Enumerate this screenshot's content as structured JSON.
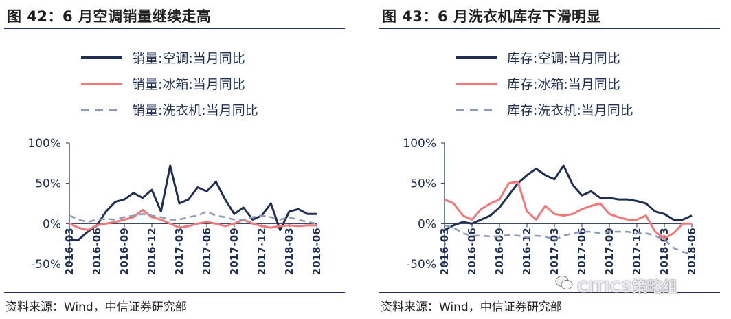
{
  "watermark": {
    "text": "CITICS策略组"
  },
  "panels": [
    {
      "title": "图 42：6 月空调销量继续走高",
      "source": "资料来源：Wind，中信证券研究部",
      "chart_data": {
        "type": "line",
        "title": "图 42：6 月空调销量继续走高",
        "xlabel": "",
        "ylabel": "",
        "ylim": [
          -0.5,
          1.0
        ],
        "yticks": [
          -0.5,
          0.0,
          0.5,
          1.0
        ],
        "ytick_labels": [
          "-50%",
          "0%",
          "50%",
          "100%"
        ],
        "x_start": "2016-03",
        "x_end": "2018-06",
        "xtick_labels": [
          "2016-03",
          "2016-06",
          "2016-09",
          "2016-12",
          "2017-03",
          "2017-06",
          "2017-09",
          "2017-12",
          "2018-03",
          "2018-06"
        ],
        "grid": false,
        "legend_position": "top",
        "series": [
          {
            "name": "销量:空调:当月同比",
            "color": "#1f2f52",
            "dash": "solid",
            "values": [
              -0.2,
              -0.2,
              -0.1,
              -0.02,
              0.15,
              0.27,
              0.3,
              0.38,
              0.32,
              0.42,
              0.15,
              0.72,
              0.25,
              0.3,
              0.45,
              0.4,
              0.52,
              0.3,
              0.12,
              0.2,
              0.05,
              0.1,
              0.25,
              -0.08,
              0.15,
              0.18,
              0.12,
              0.12
            ]
          },
          {
            "name": "销量:冰箱:当月同比",
            "color": "#f07878",
            "dash": "solid",
            "values": [
              0.0,
              -0.05,
              -0.08,
              -0.02,
              0.0,
              0.02,
              0.05,
              0.08,
              0.17,
              0.08,
              0.05,
              0.0,
              -0.05,
              -0.03,
              0.0,
              0.02,
              0.0,
              -0.03,
              0.0,
              0.05,
              0.0,
              -0.03,
              -0.05,
              -0.03,
              -0.02,
              -0.03,
              -0.02,
              -0.02
            ]
          },
          {
            "name": "销量:洗衣机:当月同比",
            "color": "#8e9ab8",
            "dash": "dashed",
            "values": [
              0.1,
              0.05,
              0.02,
              0.05,
              0.06,
              0.05,
              0.08,
              0.1,
              0.12,
              0.1,
              0.08,
              0.05,
              0.05,
              0.08,
              0.1,
              0.15,
              0.1,
              0.08,
              0.05,
              0.05,
              0.08,
              0.1,
              0.08,
              0.05,
              0.08,
              0.05,
              0.02,
              0.0
            ]
          }
        ]
      }
    },
    {
      "title": "图 43：6 月洗衣机库存下滑明显",
      "source": "资料来源：Wind，中信证券研究部",
      "chart_data": {
        "type": "line",
        "title": "图 43：6 月洗衣机库存下滑明显",
        "xlabel": "",
        "ylabel": "",
        "ylim": [
          -0.5,
          1.0
        ],
        "yticks": [
          -0.5,
          0.0,
          0.5,
          1.0
        ],
        "ytick_labels": [
          "-50%",
          "0%",
          "50%",
          "100%"
        ],
        "x_start": "2016-03",
        "x_end": "2018-06",
        "xtick_labels": [
          "2016-03",
          "2016-06",
          "2016-09",
          "2016-12",
          "2017-03",
          "2017-06",
          "2017-09",
          "2017-12",
          "2018-03",
          "2018-06"
        ],
        "grid": false,
        "legend_position": "top",
        "series": [
          {
            "name": "库存:空调:当月同比",
            "color": "#1f2f52",
            "dash": "solid",
            "values": [
              -0.08,
              -0.02,
              0.02,
              0.0,
              0.05,
              0.1,
              0.2,
              0.35,
              0.5,
              0.6,
              0.68,
              0.6,
              0.55,
              0.72,
              0.48,
              0.35,
              0.4,
              0.32,
              0.32,
              0.3,
              0.3,
              0.28,
              0.25,
              0.15,
              0.12,
              0.05,
              0.05,
              0.1
            ]
          },
          {
            "name": "库存:冰箱:当月同比",
            "color": "#f07878",
            "dash": "solid",
            "values": [
              0.3,
              0.25,
              0.1,
              0.05,
              0.18,
              0.25,
              0.3,
              0.5,
              0.52,
              0.15,
              0.05,
              0.22,
              0.12,
              0.1,
              0.12,
              0.18,
              0.22,
              0.25,
              0.12,
              0.08,
              0.05,
              0.05,
              0.1,
              -0.1,
              -0.18,
              -0.12,
              0.0,
              0.0
            ]
          },
          {
            "name": "库存:洗衣机:当月同比",
            "color": "#8e9ab8",
            "dash": "dashed",
            "values": [
              -0.02,
              -0.05,
              -0.12,
              -0.15,
              -0.15,
              -0.16,
              -0.16,
              -0.14,
              -0.15,
              -0.17,
              -0.15,
              -0.16,
              -0.2,
              -0.15,
              -0.12,
              -0.1,
              -0.1,
              -0.12,
              -0.1,
              -0.1,
              -0.1,
              -0.12,
              -0.12,
              -0.15,
              -0.2,
              -0.3,
              -0.35,
              -0.38
            ]
          }
        ]
      }
    }
  ]
}
